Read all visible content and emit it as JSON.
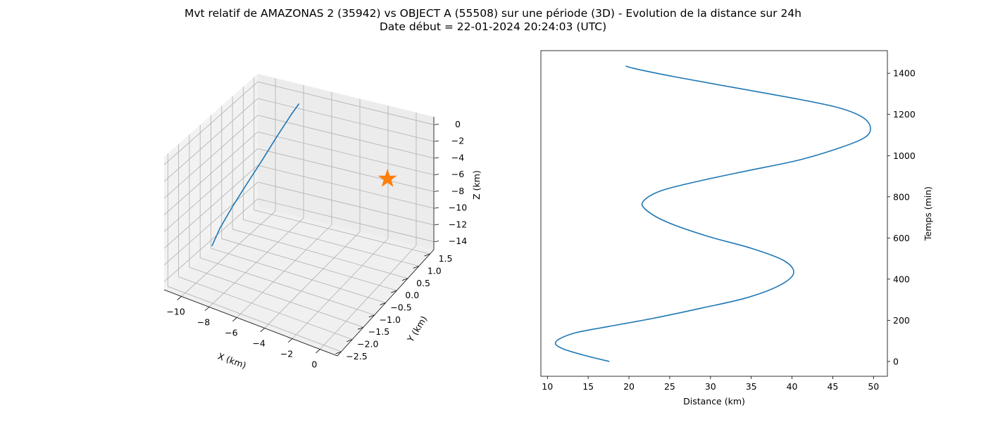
{
  "title_line1": "Mvt relatif de AMAZONAS 2 (35942) vs OBJECT A (55508) sur une période (3D) - Evolution de la distance sur 24h",
  "title_line2": "Date début = 22-01-2024 20:24:03 (UTC)",
  "colors": {
    "series": "#1f77b4",
    "marker": "#ff7f0e",
    "grid": "#b0b0b0",
    "pane": "#f2f2f2"
  },
  "chart_data": [
    {
      "type": "line",
      "projection": "3d",
      "xlabel": "X (km)",
      "ylabel": "Y (km)",
      "zlabel": "Z (km)",
      "xlim": [
        -11,
        0.4
      ],
      "ylim": [
        -2.7,
        1.8
      ],
      "zlim": [
        -14.2,
        0.9
      ],
      "xticks": [
        "−10",
        "−8",
        "−6",
        "−4",
        "−2",
        "0"
      ],
      "yticks": [
        "−2.5",
        "−2.0",
        "−1.5",
        "−1.0",
        "−0.5",
        "0.0",
        "0.5",
        "1.0",
        "1.5"
      ],
      "zticks": [
        "0",
        "−2",
        "−4",
        "−6",
        "−8",
        "−10",
        "−12",
        "−14"
      ],
      "series": [
        {
          "marker": "none",
          "x": [
            -10.8,
            -10.4,
            -9.9,
            -9.4,
            -8.9,
            -8.4,
            -7.9,
            -7.6
          ],
          "y": [
            -0.55,
            -0.45,
            -0.2,
            0.1,
            0.45,
            0.8,
            1.15,
            1.3
          ],
          "z": [
            -13.6,
            -11.5,
            -9.2,
            -7.0,
            -4.8,
            -2.5,
            -0.3,
            0.8
          ]
        },
        {
          "marker": "star",
          "x": [
            0
          ],
          "y": [
            0
          ],
          "z": [
            0
          ]
        }
      ]
    },
    {
      "type": "line",
      "xlabel": "Distance (km)",
      "ylabel": "Temps (min)",
      "xlim": [
        9.2,
        51.7
      ],
      "ylim": [
        -72,
        1510
      ],
      "xticks": [
        10,
        15,
        20,
        25,
        30,
        35,
        40,
        45,
        50
      ],
      "yticks": [
        0,
        200,
        400,
        600,
        800,
        1000,
        1200,
        1400
      ],
      "series": [
        {
          "x": [
            17.6,
            14.5,
            12.0,
            11.0,
            11.5,
            13.5,
            17.5,
            23.0,
            29.0,
            34.5,
            38.5,
            40.2,
            39.0,
            35.0,
            29.5,
            24.5,
            22.0,
            21.8,
            24.0,
            29.0,
            35.0,
            41.0,
            46.0,
            49.0,
            49.6,
            48.5,
            45.5,
            40.0,
            33.0,
            26.0,
            21.0,
            19.6
          ],
          "y": [
            0,
            30,
            60,
            85,
            110,
            140,
            170,
            210,
            260,
            310,
            370,
            430,
            490,
            550,
            610,
            680,
            740,
            780,
            830,
            880,
            930,
            980,
            1040,
            1090,
            1140,
            1190,
            1235,
            1280,
            1330,
            1380,
            1420,
            1435
          ]
        }
      ]
    }
  ]
}
